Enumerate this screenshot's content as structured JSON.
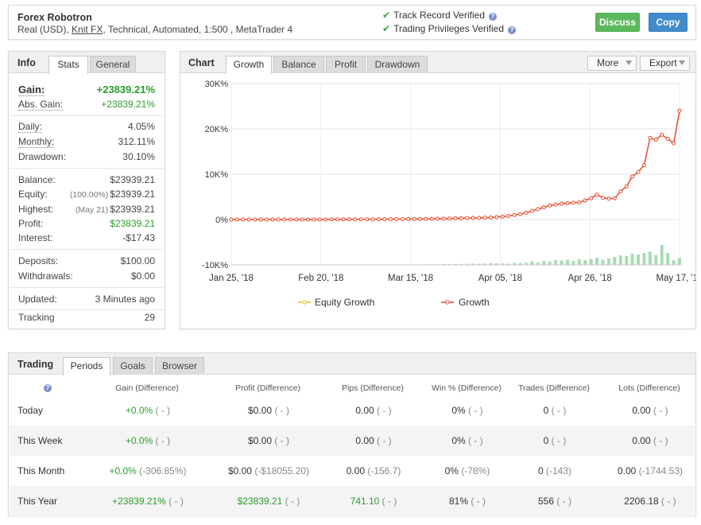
{
  "header": {
    "name": "Forex Robotron",
    "info_prefix": "Real (USD), ",
    "broker": "Knit FX",
    "info_suffix": ", Technical, Automated, 1:500 , MetaTrader 4",
    "track_record": "Track Record Verified",
    "trading_privileges": "Trading Privileges Verified",
    "help_glyph": "?",
    "check_glyph": "✔",
    "discuss_label": "Discuss",
    "copy_label": "Copy"
  },
  "info": {
    "title": "Info",
    "tabs": [
      "Stats",
      "General"
    ],
    "rows": {
      "gain": {
        "label": "Gain:",
        "value": "+23839.21%"
      },
      "abs_gain": {
        "label": "Abs. Gain:",
        "value": "+23839.21%"
      },
      "daily": {
        "label": "Daily:",
        "value": "4.05%"
      },
      "monthly": {
        "label": "Monthly:",
        "value": "312.11%"
      },
      "drawdown": {
        "label": "Drawdown:",
        "value": "30.10%"
      },
      "balance": {
        "label": "Balance:",
        "value": "$23939.21"
      },
      "equity": {
        "label": "Equity:",
        "sub": "(100.00%)",
        "value": "$23939.21"
      },
      "highest": {
        "label": "Highest:",
        "sub": "(May 21)",
        "value": "$23939.21"
      },
      "profit": {
        "label": "Profit:",
        "value": "$23839.21"
      },
      "interest": {
        "label": "Interest:",
        "value": "-$17.43"
      },
      "deposits": {
        "label": "Deposits:",
        "value": "$100.00"
      },
      "withdrawals": {
        "label": "Withdrawals:",
        "value": "$0.00"
      },
      "updated": {
        "label": "Updated:",
        "value": "3 Minutes ago"
      },
      "tracking": {
        "label": "Tracking",
        "value": "29"
      }
    }
  },
  "chart": {
    "title": "Chart",
    "tabs": [
      "Growth",
      "Balance",
      "Profit",
      "Drawdown"
    ],
    "more_label": "More",
    "export_label": "Export"
  },
  "chart_data": {
    "type": "line",
    "y_ticks": [
      "30K%",
      "20K%",
      "10K%",
      "0%",
      "-10K%"
    ],
    "ylim": [
      -10000,
      30000
    ],
    "x_ticks": [
      "Jan 25, '18",
      "Feb 20, '18",
      "Mar 15, '18",
      "Apr 05, '18",
      "Apr 26, '18",
      "May 17, '18"
    ],
    "legend": [
      "Equity Growth",
      "Growth"
    ],
    "series": [
      {
        "name": "Growth",
        "color": "#e8492b",
        "values": [
          0,
          0,
          0,
          0,
          0,
          0,
          0,
          0,
          0,
          0,
          0,
          0,
          0,
          0,
          0,
          0,
          0,
          50,
          50,
          50,
          50,
          50,
          50,
          60,
          60,
          70,
          70,
          80,
          80,
          90,
          100,
          100,
          120,
          130,
          150,
          170,
          200,
          230,
          260,
          290,
          320,
          340,
          380,
          420,
          460,
          550,
          650,
          800,
          1000,
          1200,
          1500,
          1900,
          2300,
          2700,
          3100,
          3300,
          3500,
          3600,
          3700,
          3800,
          4200,
          4700,
          5500,
          4800,
          4600,
          4700,
          6200,
          7300,
          9500,
          10500,
          12000,
          18000,
          17600,
          18700,
          17800,
          16800,
          24000
        ]
      }
    ],
    "volume_bars": [
      0.02,
      0.01,
      0.03,
      0.02,
      0.03,
      0.04,
      0.02,
      0.03,
      0.02,
      0.05,
      0.03,
      0.06,
      0.04,
      0.03,
      0.05,
      0.04,
      0.03,
      0.06,
      0.05,
      0.04,
      0.07,
      0.05,
      0.06,
      0.08,
      0.06,
      0.07,
      0.1,
      0.08,
      0.12,
      0.09,
      0.08,
      0.11,
      0.1,
      0.14,
      0.12,
      0.16,
      0.2,
      0.18,
      0.22,
      0.25,
      0.3,
      0.34,
      0.28,
      0.36,
      0.45,
      0.4,
      0.35,
      0.3,
      0.5,
      0.45,
      0.55,
      0.9,
      0.6,
      1.0,
      0.8,
      1.2,
      1.1,
      1.3,
      1.0,
      1.4,
      1.2,
      1.5,
      1.8,
      1.3,
      1.6,
      2.0,
      2.4,
      2.2,
      2.8,
      2.6,
      3.0,
      3.3,
      2.5,
      5.0,
      3.0,
      1.2,
      1.8
    ]
  },
  "trading": {
    "title": "Trading",
    "tabs": [
      "Periods",
      "Goals",
      "Browser"
    ],
    "columns": [
      "Gain (Difference)",
      "Profit (Difference)",
      "Pips (Difference)",
      "Win % (Difference)",
      "Trades (Difference)",
      "Lots (Difference)"
    ],
    "rows": [
      {
        "period": "Today",
        "cells": [
          [
            "+0.0%",
            "( - )"
          ],
          [
            "$0.00",
            "( - )"
          ],
          [
            "0.00",
            "( - )"
          ],
          [
            "0%",
            "( - )"
          ],
          [
            "0",
            "( - )"
          ],
          [
            "0.00",
            "( - )"
          ]
        ]
      },
      {
        "period": "This Week",
        "cells": [
          [
            "+0.0%",
            "( - )"
          ],
          [
            "$0.00",
            "( - )"
          ],
          [
            "0.00",
            "( - )"
          ],
          [
            "0%",
            "( - )"
          ],
          [
            "0",
            "( - )"
          ],
          [
            "0.00",
            "( - )"
          ]
        ]
      },
      {
        "period": "This Month",
        "cells": [
          [
            "+0.0%",
            "(-306.85%)"
          ],
          [
            "$0.00",
            "(-$18055.20)"
          ],
          [
            "0.00",
            "(-156.7)"
          ],
          [
            "0%",
            "(-78%)"
          ],
          [
            "0",
            "(-143)"
          ],
          [
            "0.00",
            "(-1744.53)"
          ]
        ]
      },
      {
        "period": "This Year",
        "cells": [
          [
            "+23839.21%",
            "( - )"
          ],
          [
            "$23839.21",
            "( - )"
          ],
          [
            "741.10",
            "( - )"
          ],
          [
            "81%",
            "( - )"
          ],
          [
            "556",
            "( - )"
          ],
          [
            "2206.18",
            "( - )"
          ]
        ]
      }
    ]
  }
}
